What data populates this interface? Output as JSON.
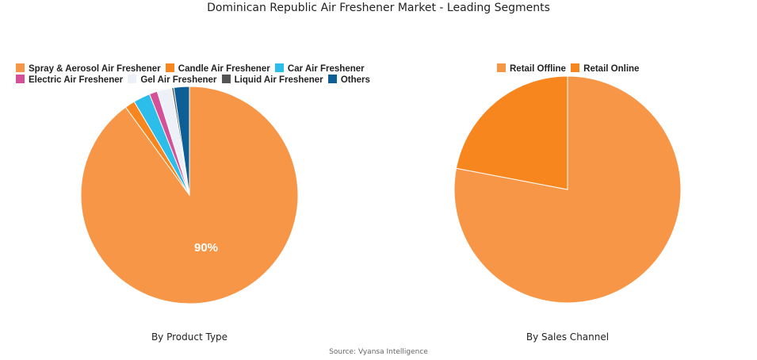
{
  "title": "Dominican Republic Air Freshener Market - Leading Segments",
  "source": "Source: Vyansa Intelligence",
  "left": {
    "subtitle": "By Product Type",
    "legend": [
      {
        "label": "Spray & Aerosol Air Freshener",
        "color": "#F79646"
      },
      {
        "label": "Candle Air Freshener",
        "color": "#F7861E"
      },
      {
        "label": "Car Air Freshener",
        "color": "#2DBDEB"
      },
      {
        "label": "Electric Air Freshener",
        "color": "#D4519A"
      },
      {
        "label": "Gel Air Freshener",
        "color": "#EEF0F8"
      },
      {
        "label": "Liquid Air Freshener",
        "color": "#555555"
      },
      {
        "label": "Others",
        "color": "#0E5F95"
      }
    ],
    "data_label": "90%"
  },
  "right": {
    "subtitle": "By Sales Channel",
    "legend": [
      {
        "label": "Retail Offline",
        "color": "#F79646"
      },
      {
        "label": "Retail Online",
        "color": "#F7861E"
      }
    ]
  },
  "chart_data": [
    {
      "type": "pie",
      "title": "By Product Type",
      "categories": [
        "Spray & Aerosol Air Freshener",
        "Candle Air Freshener",
        "Car Air Freshener",
        "Electric Air Freshener",
        "Gel Air Freshener",
        "Liquid Air Freshener",
        "Others"
      ],
      "values": [
        90,
        1.5,
        2.5,
        1.2,
        2.2,
        0.3,
        2.3
      ],
      "data_labels": [
        "90%"
      ],
      "legend_position": "top"
    },
    {
      "type": "pie",
      "title": "By Sales Channel",
      "categories": [
        "Retail Offline",
        "Retail Online"
      ],
      "values": [
        78,
        22
      ],
      "legend_position": "top"
    }
  ]
}
